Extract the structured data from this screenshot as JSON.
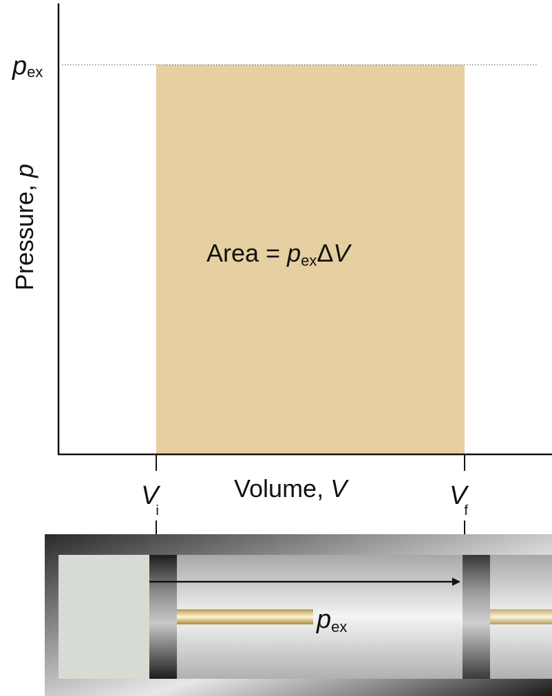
{
  "y_axis": {
    "label": "Pressure, ",
    "label_var": "p",
    "tick": {
      "symbol": "p",
      "subscript": "ex"
    }
  },
  "x_axis": {
    "label": "Volume, ",
    "label_var": "V",
    "ticks": [
      {
        "symbol": "V",
        "subscript": "i"
      },
      {
        "symbol": "V",
        "subscript": "f"
      }
    ]
  },
  "area_label": {
    "text": "Area = ",
    "symbol": "p",
    "subscript": "ex",
    "delta": "Δ",
    "var": "V"
  },
  "piston_label": {
    "symbol": "p",
    "subscript": "ex"
  }
}
